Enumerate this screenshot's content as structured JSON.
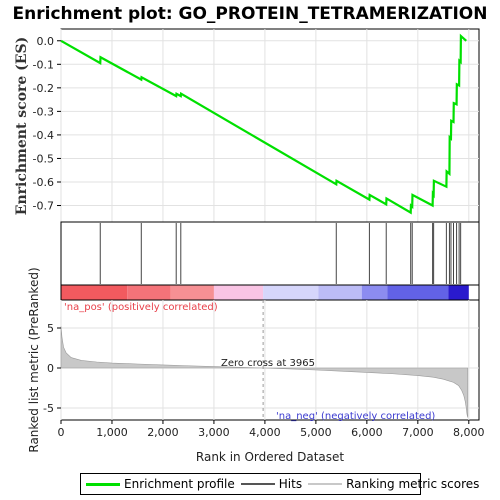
{
  "chart_data": {
    "type": "line",
    "title": "Enrichment plot: GO_PROTEIN_TETRAMERIZATION",
    "xlabel": "Rank in Ordered Dataset",
    "ylabel_top": "Enrichment score (ES)",
    "ylabel_bottom": "Ranked list metric (PreRanked)",
    "xlim": [
      0,
      8200
    ],
    "x_ticks": [
      0,
      1000,
      2000,
      3000,
      4000,
      5000,
      6000,
      7000,
      8000
    ],
    "x_tick_labels": [
      "0",
      "1,000",
      "2,000",
      "3,000",
      "4,000",
      "5,000",
      "6,000",
      "7,000",
      "8,000"
    ],
    "es_ylim": [
      -0.77,
      0.05
    ],
    "es_ticks": [
      0.0,
      -0.1,
      -0.2,
      -0.3,
      -0.4,
      -0.5,
      -0.6,
      -0.7
    ],
    "es_tick_labels": [
      "0.0",
      "-0.1",
      "-0.2",
      "-0.3",
      "-0.4",
      "-0.5",
      "-0.6",
      "-0.7"
    ],
    "metric_ylim": [
      -6.5,
      8.5
    ],
    "metric_ticks": [
      5,
      0,
      -5
    ],
    "metric_tick_labels": [
      "5",
      "0",
      "-5"
    ],
    "grid": true,
    "series": [
      {
        "name": "Enrichment profile",
        "color": "#00e000",
        "x": [
          0,
          770,
          775,
          1575,
          1580,
          2260,
          2265,
          2350,
          2355,
          5400,
          5405,
          6050,
          6055,
          6380,
          6385,
          6860,
          6865,
          6890,
          6895,
          7290,
          7295,
          7310,
          7315,
          7560,
          7565,
          7620,
          7625,
          7650,
          7655,
          7700,
          7705,
          7760,
          7765,
          7810,
          7815,
          7840,
          7845,
          7950
        ],
        "y": [
          0.0,
          -0.095,
          -0.07,
          -0.165,
          -0.155,
          -0.235,
          -0.225,
          -0.235,
          -0.225,
          -0.61,
          -0.595,
          -0.675,
          -0.655,
          -0.695,
          -0.67,
          -0.73,
          -0.7,
          -0.705,
          -0.655,
          -0.7,
          -0.65,
          -0.655,
          -0.595,
          -0.62,
          -0.555,
          -0.565,
          -0.41,
          -0.415,
          -0.34,
          -0.345,
          -0.265,
          -0.27,
          -0.185,
          -0.19,
          -0.085,
          -0.09,
          0.02,
          0.0
        ]
      }
    ],
    "hits": [
      770,
      1575,
      2260,
      2350,
      5400,
      6050,
      6380,
      6860,
      6890,
      7290,
      7310,
      7560,
      7620,
      7650,
      7700,
      7760,
      7810,
      7840
    ],
    "heatmap_bands": [
      {
        "from": 0,
        "to": 1300,
        "color": "#f25a5f"
      },
      {
        "from": 1300,
        "to": 2150,
        "color": "#f47379"
      },
      {
        "from": 2150,
        "to": 3000,
        "color": "#f69094"
      },
      {
        "from": 3000,
        "to": 3965,
        "color": "#f9c4e4"
      },
      {
        "from": 3965,
        "to": 5050,
        "color": "#d6d6fb"
      },
      {
        "from": 5050,
        "to": 5900,
        "color": "#bcbcf6"
      },
      {
        "from": 5900,
        "to": 6400,
        "color": "#8c8cf0"
      },
      {
        "from": 6400,
        "to": 7600,
        "color": "#6262e6"
      },
      {
        "from": 7600,
        "to": 8000,
        "color": "#2a1acd"
      }
    ],
    "metric_curve": {
      "x": [
        0,
        20,
        50,
        100,
        200,
        400,
        700,
        1000,
        1500,
        2000,
        2500,
        3000,
        3500,
        3965,
        4500,
        5000,
        5500,
        6000,
        6500,
        7000,
        7300,
        7500,
        7700,
        7800,
        7860,
        7900,
        7930,
        7950,
        7965,
        7980
      ],
      "y": [
        5.2,
        3.8,
        2.6,
        1.9,
        1.3,
        0.95,
        0.75,
        0.62,
        0.5,
        0.38,
        0.28,
        0.18,
        0.08,
        0.0,
        -0.12,
        -0.25,
        -0.4,
        -0.55,
        -0.72,
        -0.95,
        -1.15,
        -1.4,
        -1.8,
        -2.2,
        -2.8,
        -3.4,
        -4.2,
        -5.0,
        -5.8,
        -6.2
      ]
    },
    "zero_cross": 3965,
    "annotations": {
      "pos": "'na_pos' (positively correlated)",
      "neg": "'na_neg' (negatively correlated)",
      "zero": "Zero cross at 3965"
    },
    "legend": [
      {
        "name": "Enrichment profile",
        "color": "#00e000"
      },
      {
        "name": "Hits",
        "color": "#555555"
      },
      {
        "name": "Ranking metric scores",
        "color": "#c8c8c8"
      }
    ]
  }
}
